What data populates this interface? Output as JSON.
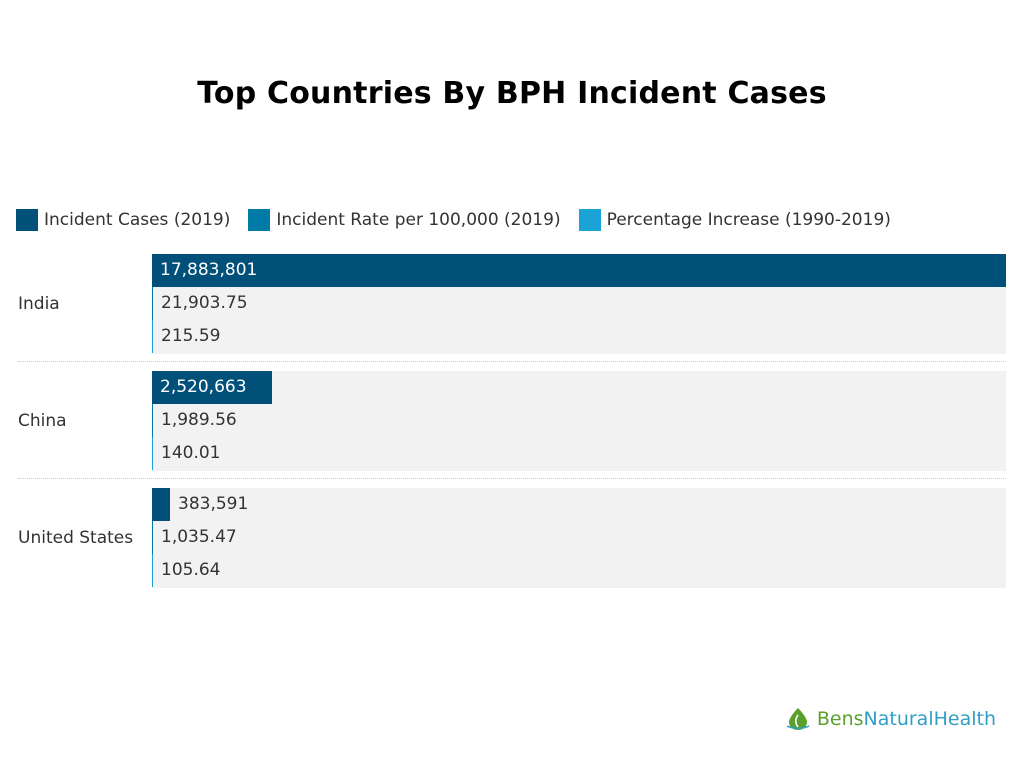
{
  "chart_data": {
    "type": "bar",
    "orientation": "horizontal",
    "title": "Top Countries By BPH Incident Cases",
    "categories": [
      "India",
      "China",
      "United States"
    ],
    "series": [
      {
        "name": "Incident Cases (2019)",
        "values": [
          17883801,
          2520663,
          383591
        ],
        "labels": [
          "17,883,801",
          "2,520,663",
          "383,591"
        ],
        "color": "#00507a"
      },
      {
        "name": "Incident Rate per 100,000 (2019)",
        "values": [
          21903.75,
          1989.56,
          1035.47
        ],
        "labels": [
          "21,903.75",
          "1,989.56",
          "1,035.47"
        ],
        "color": "#007aa6"
      },
      {
        "name": "Percentage Increase (1990-2019)",
        "values": [
          215.59,
          140.01,
          105.64
        ],
        "labels": [
          "215.59",
          "140.01",
          "105.64"
        ],
        "color": "#1aa3d6"
      }
    ],
    "xlim": [
      0,
      17883801
    ],
    "legend_position": "top-left",
    "grid": false
  },
  "brand": {
    "part1": "Bens",
    "part2": "NaturalHealth",
    "logo_icon": "leaf-drop-icon"
  }
}
